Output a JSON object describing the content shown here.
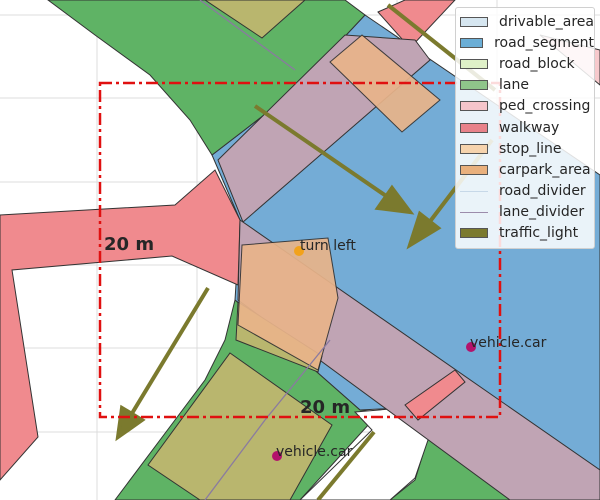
{
  "legend": {
    "items": [
      {
        "label": "drivable_area",
        "color": "#d6e6f0",
        "kind": "fill"
      },
      {
        "label": "road_segment",
        "color": "#6baed6",
        "kind": "fill"
      },
      {
        "label": "road_block",
        "color": "#dff0c8",
        "kind": "fill"
      },
      {
        "label": "lane",
        "color": "#8fc48a",
        "kind": "fill"
      },
      {
        "label": "ped_crossing",
        "color": "#f5c5cb",
        "kind": "fill"
      },
      {
        "label": "walkway",
        "color": "#e8828a",
        "kind": "fill"
      },
      {
        "label": "stop_line",
        "color": "#f6d3ad",
        "kind": "fill"
      },
      {
        "label": "carpark_area",
        "color": "#e9b07d",
        "kind": "fill"
      },
      {
        "label": "road_divider",
        "color": "#c7d8e8",
        "kind": "line"
      },
      {
        "label": "lane_divider",
        "color": "#9c8cab",
        "kind": "line"
      },
      {
        "label": "traffic_light",
        "color": "#7b7a2e",
        "kind": "fill"
      }
    ]
  },
  "map": {
    "scale_labels": [
      "20 m",
      "20 m"
    ],
    "agents": [
      {
        "label": "turn left",
        "color": "#f2a21b"
      },
      {
        "label": "vehicle.car",
        "color": "#b3136b"
      },
      {
        "label": "vehicle.car",
        "color": "#b3136b"
      }
    ],
    "colors": {
      "walkway": "#f08a8e",
      "lane": "#5fb365",
      "road_segment": "#74acd6",
      "ped_crossing": "#c0a4b4",
      "carpark": "#b9b66e",
      "stop_line": "#e9b48a",
      "traffic_light": "#7b7a2e",
      "box": "#e01010",
      "grid": "#dcdcdc"
    }
  }
}
